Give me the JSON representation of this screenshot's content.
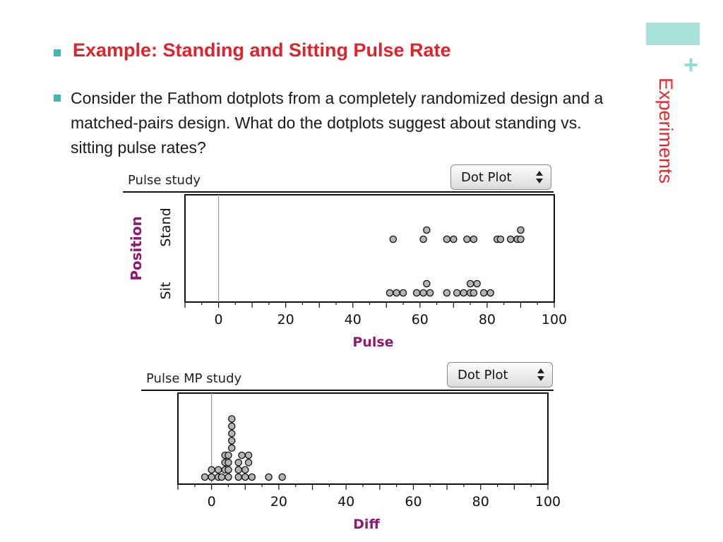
{
  "slide": {
    "side_title": "Experiments",
    "plus_glyph": "+",
    "heading": "Example: Standing and Sitting Pulse Rate",
    "body": "Consider the Fathom dotplots from a completely randomized design and a matched-pairs design.  What do the dotplots suggest about standing vs. sitting pulse rates?",
    "accent_color": "#e1222b",
    "teal_color": "#3fb9ae"
  },
  "panels": {
    "top": {
      "title": "Pulse study",
      "dropdown": "Dot Plot"
    },
    "bottom": {
      "title": "Pulse MP study",
      "dropdown": "Dot Plot"
    }
  },
  "chart_data": [
    {
      "type": "scatter",
      "title": "",
      "xlabel": "Pulse",
      "ylabel": "Position",
      "categories": [
        "Sit",
        "Stand"
      ],
      "xlim": [
        -10,
        100
      ],
      "x_ticks": [
        0,
        20,
        40,
        60,
        80,
        100
      ],
      "series": [
        {
          "name": "Stand",
          "values": [
            52,
            61,
            62,
            68,
            70,
            74,
            76,
            83,
            84,
            87,
            89,
            90,
            90
          ]
        },
        {
          "name": "Sit",
          "values": [
            51,
            53,
            55,
            59,
            61,
            62,
            63,
            68,
            71,
            73,
            75,
            75,
            76,
            77,
            79,
            81
          ]
        }
      ]
    },
    {
      "type": "scatter",
      "title": "",
      "xlabel": "Diff",
      "xlim": [
        -10,
        100
      ],
      "x_ticks": [
        0,
        20,
        40,
        60,
        80,
        100
      ],
      "values": [
        -2,
        0,
        0,
        2,
        2,
        3,
        4,
        4,
        4,
        5,
        5,
        5,
        5,
        6,
        6,
        6,
        6,
        6,
        8,
        8,
        8,
        9,
        10,
        10,
        11,
        11,
        12,
        17,
        21
      ]
    }
  ]
}
